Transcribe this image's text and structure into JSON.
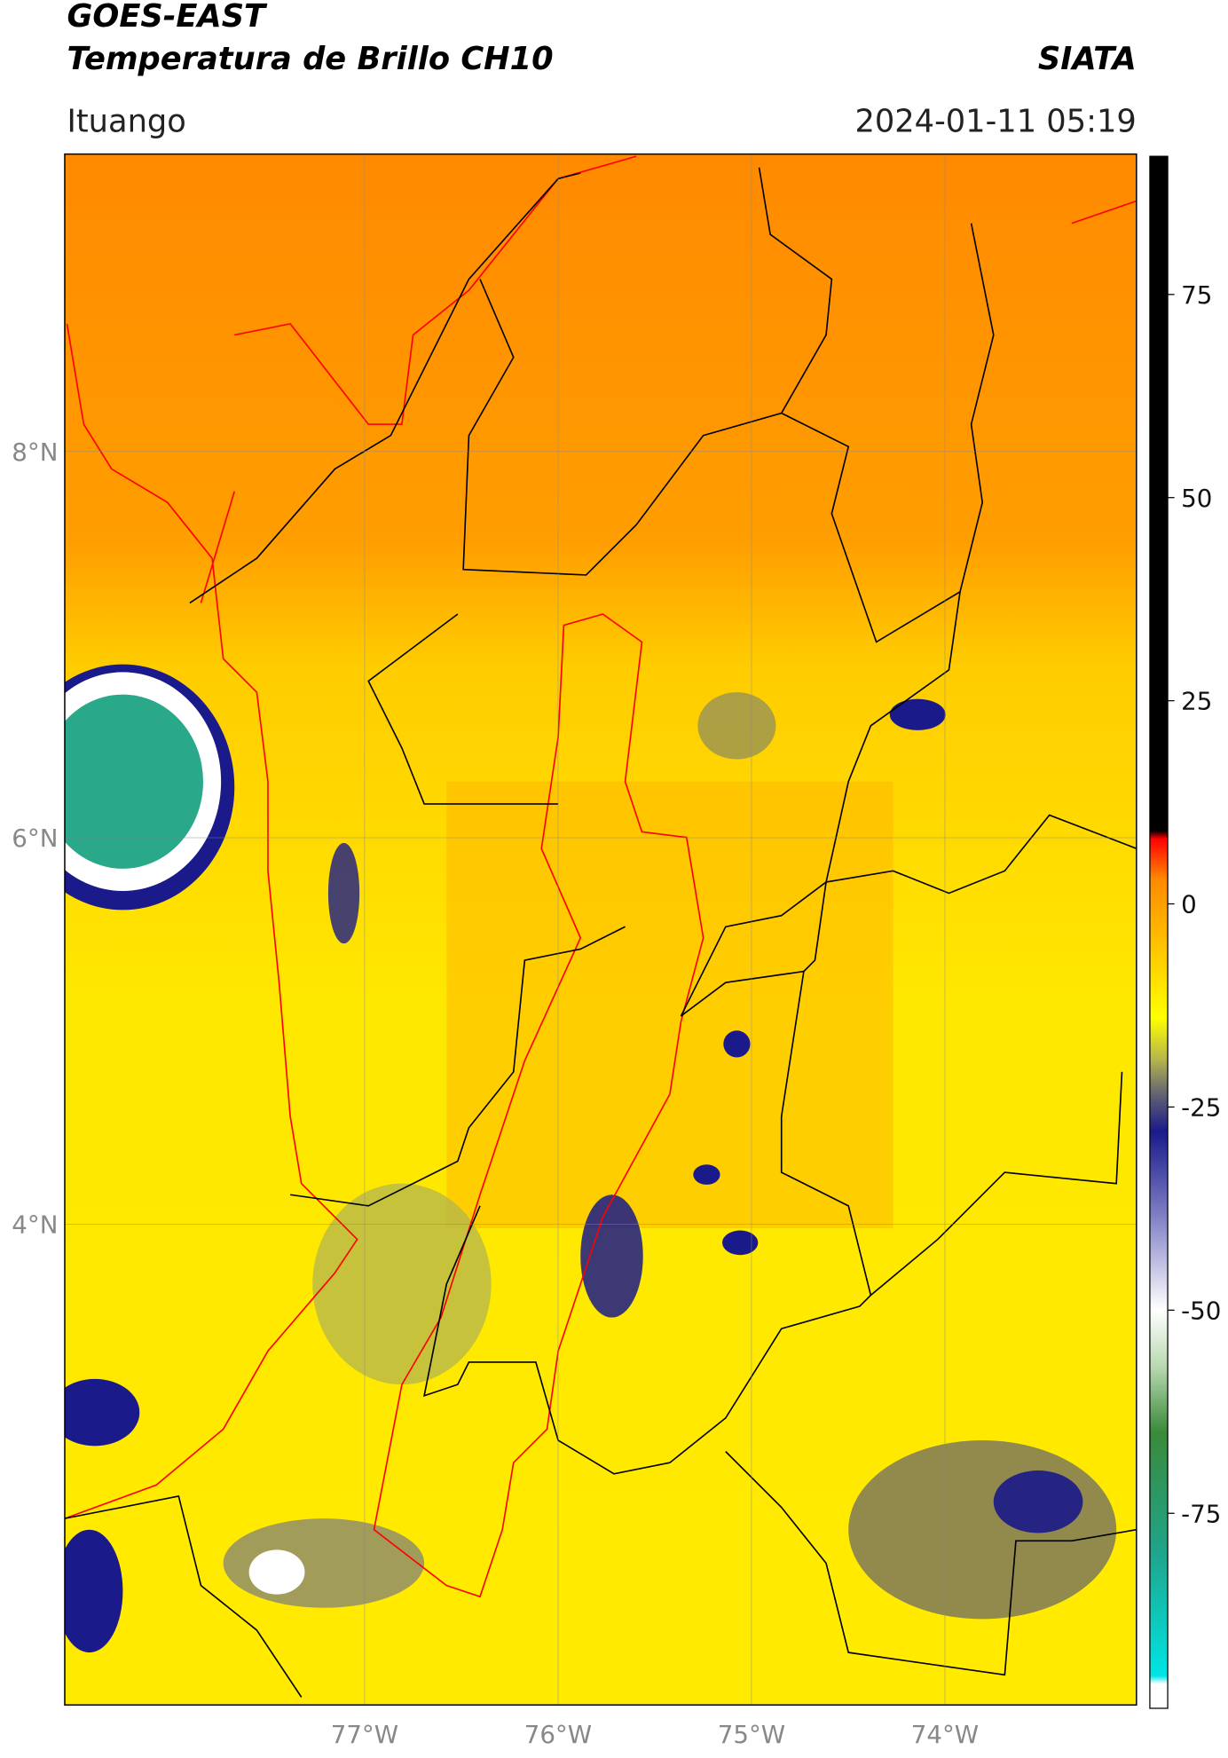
{
  "header": {
    "title": "GOES-EAST",
    "subtitle": "Temperatura de Brillo CH10",
    "source": "SIATA",
    "region": "Ituango",
    "timestamp": "2024-01-11 05:19"
  },
  "chart_data": {
    "type": "map",
    "xlim": [
      -78.55,
      -73.01
    ],
    "ylim": [
      1.51,
      9.54
    ],
    "xticks": [
      {
        "value": -77,
        "label": "77°W"
      },
      {
        "value": -76,
        "label": "76°W"
      },
      {
        "value": -75,
        "label": "75°W"
      },
      {
        "value": -74,
        "label": "74°W"
      }
    ],
    "yticks": [
      {
        "value": 4,
        "label": "4°N"
      },
      {
        "value": 6,
        "label": "6°N"
      },
      {
        "value": 8,
        "label": "8°N"
      }
    ],
    "grid": true,
    "colorbar": {
      "lim": [
        -99,
        92
      ],
      "ticks": [
        75,
        50,
        25,
        0,
        -25,
        -50,
        -75
      ],
      "stops": [
        {
          "value": -99,
          "color": "#ffffff"
        },
        {
          "value": -96,
          "color": "#ffffff"
        },
        {
          "value": -95,
          "color": "#00e5e5"
        },
        {
          "value": -80,
          "color": "#1fa58c"
        },
        {
          "value": -65,
          "color": "#3a8a3a"
        },
        {
          "value": -57,
          "color": "#b8d8b0"
        },
        {
          "value": -50,
          "color": "#ffffff"
        },
        {
          "value": -38,
          "color": "#7b7bc4"
        },
        {
          "value": -28,
          "color": "#1a1a8a"
        },
        {
          "value": -23,
          "color": "#6a6a70"
        },
        {
          "value": -19,
          "color": "#b8b84a"
        },
        {
          "value": -14,
          "color": "#ffff00"
        },
        {
          "value": -5,
          "color": "#ffc200"
        },
        {
          "value": 3,
          "color": "#ff8a00"
        },
        {
          "value": 8,
          "color": "#ff0000"
        },
        {
          "value": 9,
          "color": "#000000"
        },
        {
          "value": 92,
          "color": "#000000"
        }
      ]
    }
  }
}
